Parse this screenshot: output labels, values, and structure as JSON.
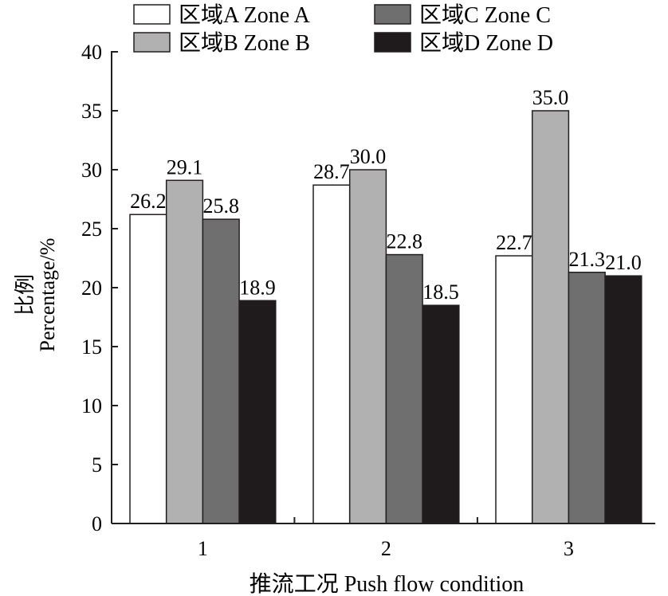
{
  "chart_data": {
    "type": "bar",
    "title": "",
    "xlabel": "推流工况 Push flow condition",
    "ylabel_cn": "比例",
    "ylabel": "Percentage/%",
    "categories": [
      "1",
      "2",
      "3"
    ],
    "ylim": [
      0,
      40
    ],
    "yticks": [
      "0",
      "5",
      "10",
      "15",
      "20",
      "25",
      "30",
      "35",
      "40"
    ],
    "grid": false,
    "legend_placement": "top",
    "series": [
      {
        "name": "区域A Zone A",
        "color": "#ffffff",
        "values": [
          26.2,
          28.7,
          22.7
        ],
        "labels": [
          "26.2",
          "28.7",
          "22.7"
        ]
      },
      {
        "name": "区域B Zone B",
        "color": "#b1b1b1",
        "values": [
          29.1,
          30.0,
          35.0
        ],
        "labels": [
          "29.1",
          "30.0",
          "35.0"
        ]
      },
      {
        "name": "区域C Zone C",
        "color": "#6f6f6f",
        "values": [
          25.8,
          22.8,
          21.3
        ],
        "labels": [
          "25.8",
          "22.8",
          "21.3"
        ]
      },
      {
        "name": "区域D Zone D",
        "color": "#1f1a1b",
        "values": [
          18.9,
          18.5,
          21.0
        ],
        "labels": [
          "18.9",
          "18.5",
          "21.0"
        ]
      }
    ]
  }
}
